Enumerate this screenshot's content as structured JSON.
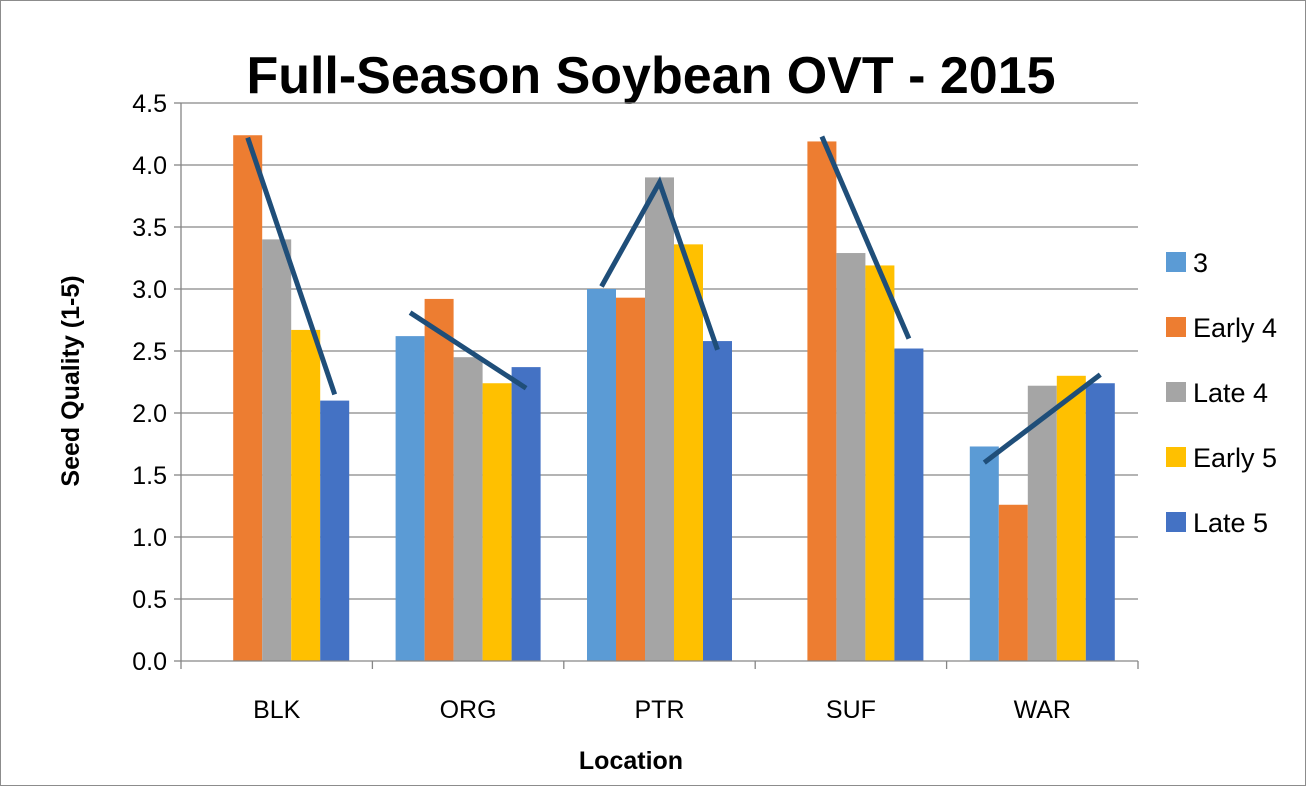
{
  "chart_data": {
    "type": "bar",
    "title": "Full-Season Soybean OVT - 2015",
    "xlabel": "Location",
    "ylabel": "Seed Quality (1-5)",
    "ylim": [
      0,
      4.5
    ],
    "ytick_step": 0.5,
    "ytick_labels": [
      "0.0",
      "0.5",
      "1.0",
      "1.5",
      "2.0",
      "2.5",
      "3.0",
      "3.5",
      "4.0",
      "4.5"
    ],
    "grid": true,
    "legend_position": "right",
    "categories": [
      "BLK",
      "ORG",
      "PTR",
      "SUF",
      "WAR"
    ],
    "series": [
      {
        "name": "3",
        "color": "#5B9BD5",
        "values": [
          null,
          2.62,
          3.0,
          null,
          1.73
        ]
      },
      {
        "name": "Early 4",
        "color": "#ED7D31",
        "values": [
          4.24,
          2.92,
          2.93,
          4.19,
          1.26
        ]
      },
      {
        "name": "Late 4",
        "color": "#A5A5A5",
        "values": [
          3.4,
          2.45,
          3.9,
          3.29,
          2.22
        ]
      },
      {
        "name": "Early 5",
        "color": "#FFC000",
        "values": [
          2.67,
          2.24,
          3.36,
          3.19,
          2.3
        ]
      },
      {
        "name": "Late 5",
        "color": "#4472C4",
        "values": [
          2.1,
          2.37,
          2.58,
          2.52,
          2.24
        ]
      }
    ],
    "annotations": {
      "type": "trend-lines",
      "color": "#1F4E79",
      "lines": [
        {
          "category": "BLK",
          "points": [
            [
              "Early 4",
              4.22
            ],
            [
              "Late 5",
              2.15
            ]
          ]
        },
        {
          "category": "ORG",
          "points": [
            [
              "3",
              2.81
            ],
            [
              "Late 5",
              2.2
            ]
          ]
        },
        {
          "category": "PTR",
          "points": [
            [
              "3",
              3.02
            ],
            [
              "Late 4",
              3.86
            ],
            [
              "Late 5",
              2.51
            ]
          ]
        },
        {
          "category": "SUF",
          "points": [
            [
              "Early 4",
              4.23
            ],
            [
              "Late 5",
              2.6
            ]
          ]
        },
        {
          "category": "WAR",
          "points": [
            [
              "3",
              1.6
            ],
            [
              "Late 5",
              2.31
            ]
          ]
        }
      ]
    }
  }
}
